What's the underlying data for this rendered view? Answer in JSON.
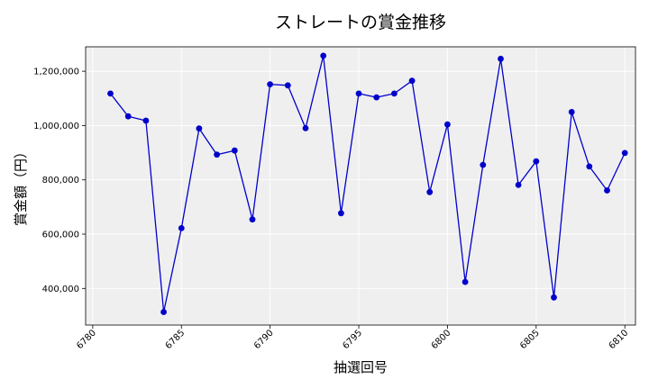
{
  "chart_data": {
    "type": "line",
    "title": "ストレートの賞金推移",
    "xlabel": "抽選回号",
    "ylabel": "賞金額（円）",
    "xlim": [
      6779.6,
      6810.6
    ],
    "ylim": [
      265000,
      1290000
    ],
    "xticks": [
      6780,
      6785,
      6790,
      6795,
      6800,
      6805,
      6810
    ],
    "xtick_labels": [
      "6780",
      "6785",
      "6790",
      "6795",
      "6800",
      "6805",
      "6810"
    ],
    "yticks": [
      400000,
      600000,
      800000,
      1000000,
      1200000
    ],
    "ytick_labels": [
      "400,000",
      "600,000",
      "800,000",
      "1,000,000",
      "1,200,000"
    ],
    "grid": true,
    "background": "#efefef",
    "series": [
      {
        "color": "#0000cc",
        "marker": "circle",
        "x": [
          6781,
          6782,
          6783,
          6784,
          6785,
          6786,
          6787,
          6788,
          6789,
          6790,
          6791,
          6792,
          6793,
          6794,
          6795,
          6796,
          6797,
          6798,
          6799,
          6800,
          6801,
          6802,
          6803,
          6804,
          6805,
          6806,
          6807,
          6808,
          6809,
          6810
        ],
        "y": [
          1118000,
          1034000,
          1018000,
          313000,
          622000,
          989000,
          893000,
          908000,
          654000,
          1152000,
          1148000,
          990000,
          1257000,
          677000,
          1118000,
          1104000,
          1118000,
          1165000,
          755000,
          1004000,
          424000,
          855000,
          1246000,
          781000,
          868000,
          367000,
          1050000,
          849000,
          761000,
          899000
        ]
      }
    ]
  }
}
